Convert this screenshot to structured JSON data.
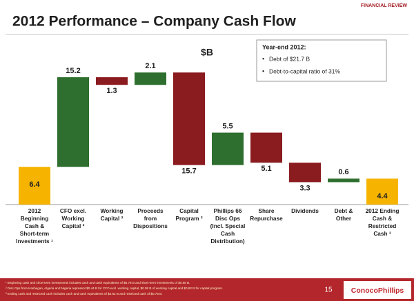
{
  "header": {
    "section": "FINANCIAL REVIEW"
  },
  "chart_data": {
    "type": "waterfall",
    "title": "2012 Performance – Company Cash Flow",
    "unit_label": "$B",
    "annotation": {
      "heading": "Year-end 2012:",
      "bullets": [
        "Debt of $21.7 B",
        "Debt-to-capital ratio of 31%"
      ]
    },
    "categories": [
      [
        "2012",
        "Beginning",
        "Cash &",
        "Short-term",
        "Investments ¹"
      ],
      [
        "CFO excl.",
        "Working",
        "Capital ²"
      ],
      [
        "Working",
        "Capital ²"
      ],
      [
        "Proceeds",
        "from",
        "Dispositions"
      ],
      [
        "Capital",
        "Program ²"
      ],
      [
        "Phillips 66",
        "Disc Ops",
        "(Incl. Special",
        "Cash",
        "Distribution)"
      ],
      [
        "Share",
        "Repurchase"
      ],
      [
        "Dividends"
      ],
      [
        "Debt &",
        "Other"
      ],
      [
        "2012 Ending",
        "Cash &",
        "Restricted",
        "Cash ³"
      ]
    ],
    "measure": [
      "total",
      "relative",
      "relative",
      "relative",
      "relative",
      "relative",
      "relative",
      "relative",
      "relative",
      "total"
    ],
    "values": [
      6.4,
      15.2,
      -1.3,
      2.1,
      -15.7,
      5.5,
      -5.1,
      -3.3,
      0.6,
      4.4
    ],
    "value_labels": [
      "6.4",
      "15.2",
      "1.3",
      "2.1",
      "15.7",
      "5.5",
      "5.1",
      "3.3",
      "0.6",
      "4.4"
    ],
    "colors": {
      "total": "#f6b400",
      "increase": "#2e6e2e",
      "decrease": "#8a1b1f"
    },
    "ylim": [
      0,
      25
    ]
  },
  "footer": {
    "notes": [
      "¹ Beginning cash and short-term investments includes cash and cash equivalents of $5.78 B and short-term investments of $0.58 B.",
      "² Disc Ops from Kashagan, Algeria and Nigeria represent $0.44 B for CFO excl. working capital, $0.08 B of working capital and $0.82 B for capital program.",
      "³ Ending cash and restricted cash includes cash and cash equivalents of $3.62 B and restricted cash of $0.75 B."
    ],
    "page": "15",
    "logo": "ConocoPhillips"
  }
}
